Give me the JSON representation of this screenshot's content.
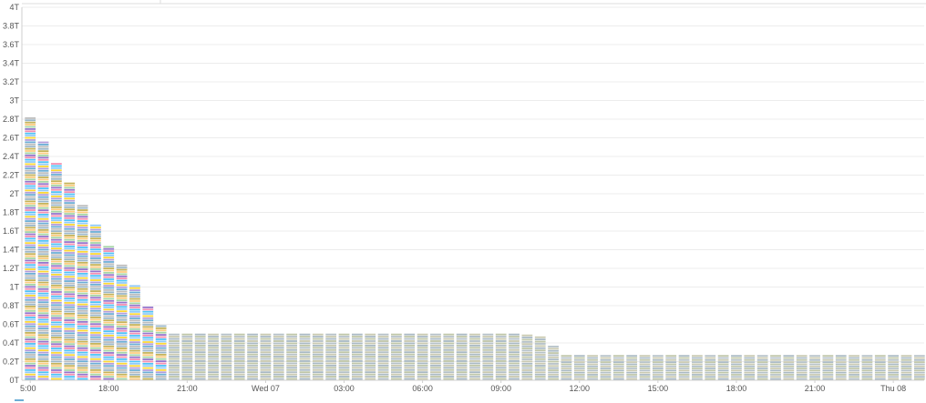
{
  "chart_data": {
    "type": "bar",
    "stacked": true,
    "grid": true,
    "ylim": [
      0,
      4
    ],
    "ytick_values": [
      0,
      0.2,
      0.4,
      0.6,
      0.8,
      1,
      1.2,
      1.4,
      1.6,
      1.8,
      2,
      2.2,
      2.4,
      2.6,
      2.8,
      3,
      3.2,
      3.4,
      3.6,
      3.8,
      4
    ],
    "ytick_labels": [
      "0T",
      "0.2T",
      "0.4T",
      "0.6T",
      "0.8T",
      "1T",
      "1.2T",
      "1.4T",
      "1.6T",
      "1.8T",
      "2T",
      "2.2T",
      "2.4T",
      "2.6T",
      "2.8T",
      "3T",
      "3.2T",
      "3.4T",
      "3.6T",
      "3.8T",
      "4T"
    ],
    "xtick_labels": [
      "5:00",
      "18:00",
      "21:00",
      "Wed 07",
      "03:00",
      "06:00",
      "09:00",
      "12:00",
      "15:00",
      "18:00",
      "21:00",
      "Thu 08"
    ],
    "xtick_bar_index": [
      0,
      6,
      12,
      18,
      24,
      30,
      36,
      42,
      48,
      54,
      60,
      66
    ],
    "totals": [
      2.82,
      2.56,
      2.33,
      2.12,
      1.88,
      1.67,
      1.44,
      1.24,
      1.02,
      0.79,
      0.59,
      0.5,
      0.5,
      0.5,
      0.5,
      0.5,
      0.5,
      0.5,
      0.5,
      0.5,
      0.5,
      0.5,
      0.5,
      0.5,
      0.5,
      0.5,
      0.5,
      0.5,
      0.5,
      0.5,
      0.5,
      0.5,
      0.5,
      0.5,
      0.5,
      0.5,
      0.5,
      0.5,
      0.49,
      0.47,
      0.37,
      0.27,
      0.27,
      0.27,
      0.27,
      0.27,
      0.27,
      0.27,
      0.27,
      0.27,
      0.27,
      0.27,
      0.27,
      0.27,
      0.27,
      0.27,
      0.27,
      0.27,
      0.27,
      0.27,
      0.27,
      0.27,
      0.27,
      0.27,
      0.27,
      0.27,
      0.27,
      0.27,
      0.27
    ],
    "series_colors": [
      "#6baed6",
      "#b39ddb",
      "#fdd835",
      "#90caf9",
      "#4fc3f7",
      "#f48fb1",
      "#9575cd",
      "#a5d6a7",
      "#ffcc80",
      "#c5b358",
      "#9bb7c9",
      "#bdbdbd"
    ],
    "tail_colors": [
      "#bfc6a8",
      "#a9b9c4",
      "#c9c9b0",
      "#b5c1c8"
    ],
    "legend_color": "#6baed6",
    "legend_placement": "bottom-left"
  }
}
